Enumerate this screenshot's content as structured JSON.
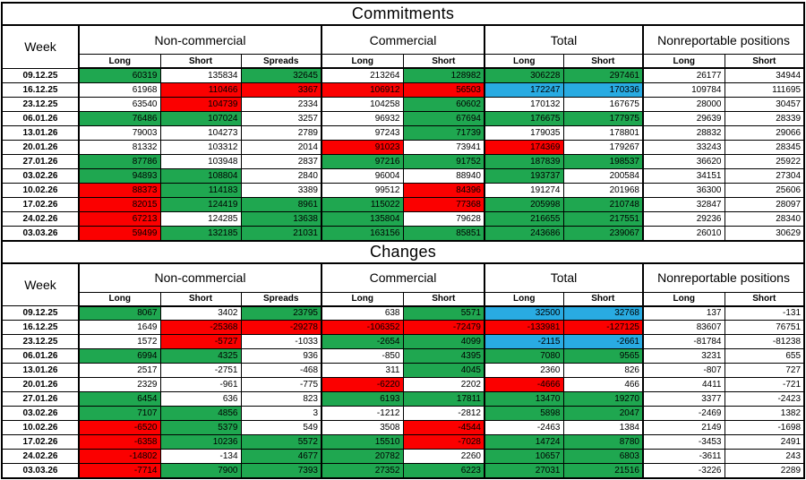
{
  "colors": {
    "green": "#1FA750",
    "red": "#FB0000",
    "blue": "#29ABE2",
    "border": "#000000"
  },
  "header": {
    "week_label": "Week",
    "groups": [
      {
        "label": "Non-commercial",
        "cols": [
          "Long",
          "Short",
          "Spreads"
        ]
      },
      {
        "label": "Commercial",
        "cols": [
          "Long",
          "Short"
        ]
      },
      {
        "label": "Total",
        "cols": [
          "Long",
          "Short"
        ]
      },
      {
        "label": "Nonreportable positions",
        "cols": [
          "Long",
          "Short"
        ]
      }
    ]
  },
  "tables": [
    {
      "title": "Commitments",
      "rows": [
        {
          "week": "09.12.25",
          "cells": [
            [
              "60319",
              "g"
            ],
            [
              "135834",
              "w"
            ],
            [
              "32645",
              "g"
            ],
            [
              "213264",
              "w"
            ],
            [
              "128982",
              "g"
            ],
            [
              "306228",
              "g"
            ],
            [
              "297461",
              "g"
            ],
            [
              "26177",
              "w"
            ],
            [
              "34944",
              "w"
            ]
          ]
        },
        {
          "week": "16.12.25",
          "cells": [
            [
              "61968",
              "w"
            ],
            [
              "110466",
              "r"
            ],
            [
              "3367",
              "r"
            ],
            [
              "106912",
              "r"
            ],
            [
              "56503",
              "r"
            ],
            [
              "172247",
              "b"
            ],
            [
              "170336",
              "b"
            ],
            [
              "109784",
              "w"
            ],
            [
              "111695",
              "w"
            ]
          ]
        },
        {
          "week": "23.12.25",
          "cells": [
            [
              "63540",
              "w"
            ],
            [
              "104739",
              "r"
            ],
            [
              "2334",
              "w"
            ],
            [
              "104258",
              "w"
            ],
            [
              "60602",
              "g"
            ],
            [
              "170132",
              "w"
            ],
            [
              "167675",
              "w"
            ],
            [
              "28000",
              "w"
            ],
            [
              "30457",
              "w"
            ]
          ]
        },
        {
          "week": "06.01.26",
          "cells": [
            [
              "76486",
              "g"
            ],
            [
              "107024",
              "g"
            ],
            [
              "3257",
              "w"
            ],
            [
              "96932",
              "w"
            ],
            [
              "67694",
              "g"
            ],
            [
              "176675",
              "g"
            ],
            [
              "177975",
              "g"
            ],
            [
              "29639",
              "w"
            ],
            [
              "28339",
              "w"
            ]
          ]
        },
        {
          "week": "13.01.26",
          "cells": [
            [
              "79003",
              "w"
            ],
            [
              "104273",
              "w"
            ],
            [
              "2789",
              "w"
            ],
            [
              "97243",
              "w"
            ],
            [
              "71739",
              "g"
            ],
            [
              "179035",
              "w"
            ],
            [
              "178801",
              "w"
            ],
            [
              "28832",
              "w"
            ],
            [
              "29066",
              "w"
            ]
          ]
        },
        {
          "week": "20.01.26",
          "cells": [
            [
              "81332",
              "w"
            ],
            [
              "103312",
              "w"
            ],
            [
              "2014",
              "w"
            ],
            [
              "91023",
              "r"
            ],
            [
              "73941",
              "w"
            ],
            [
              "174369",
              "r"
            ],
            [
              "179267",
              "w"
            ],
            [
              "33243",
              "w"
            ],
            [
              "28345",
              "w"
            ]
          ]
        },
        {
          "week": "27.01.26",
          "cells": [
            [
              "87786",
              "g"
            ],
            [
              "103948",
              "w"
            ],
            [
              "2837",
              "w"
            ],
            [
              "97216",
              "g"
            ],
            [
              "91752",
              "g"
            ],
            [
              "187839",
              "g"
            ],
            [
              "198537",
              "g"
            ],
            [
              "36620",
              "w"
            ],
            [
              "25922",
              "w"
            ]
          ]
        },
        {
          "week": "03.02.26",
          "cells": [
            [
              "94893",
              "g"
            ],
            [
              "108804",
              "g"
            ],
            [
              "2840",
              "w"
            ],
            [
              "96004",
              "w"
            ],
            [
              "88940",
              "w"
            ],
            [
              "193737",
              "g"
            ],
            [
              "200584",
              "w"
            ],
            [
              "34151",
              "w"
            ],
            [
              "27304",
              "w"
            ]
          ]
        },
        {
          "week": "10.02.26",
          "cells": [
            [
              "88373",
              "r"
            ],
            [
              "114183",
              "g"
            ],
            [
              "3389",
              "w"
            ],
            [
              "99512",
              "w"
            ],
            [
              "84396",
              "r"
            ],
            [
              "191274",
              "w"
            ],
            [
              "201968",
              "w"
            ],
            [
              "36300",
              "w"
            ],
            [
              "25606",
              "w"
            ]
          ]
        },
        {
          "week": "17.02.26",
          "cells": [
            [
              "82015",
              "r"
            ],
            [
              "124419",
              "g"
            ],
            [
              "8961",
              "g"
            ],
            [
              "115022",
              "g"
            ],
            [
              "77368",
              "r"
            ],
            [
              "205998",
              "g"
            ],
            [
              "210748",
              "g"
            ],
            [
              "32847",
              "w"
            ],
            [
              "28097",
              "w"
            ]
          ]
        },
        {
          "week": "24.02.26",
          "cells": [
            [
              "67213",
              "r"
            ],
            [
              "124285",
              "w"
            ],
            [
              "13638",
              "g"
            ],
            [
              "135804",
              "g"
            ],
            [
              "79628",
              "w"
            ],
            [
              "216655",
              "g"
            ],
            [
              "217551",
              "g"
            ],
            [
              "29236",
              "w"
            ],
            [
              "28340",
              "w"
            ]
          ]
        },
        {
          "week": "03.03.26",
          "cells": [
            [
              "59499",
              "r"
            ],
            [
              "132185",
              "g"
            ],
            [
              "21031",
              "g"
            ],
            [
              "163156",
              "g"
            ],
            [
              "85851",
              "g"
            ],
            [
              "243686",
              "gB"
            ],
            [
              "239067",
              "gB"
            ],
            [
              "26010",
              "w"
            ],
            [
              "30629",
              "w"
            ]
          ]
        }
      ]
    },
    {
      "title": "Changes",
      "rows": [
        {
          "week": "09.12.25",
          "cells": [
            [
              "8067",
              "g"
            ],
            [
              "3402",
              "w"
            ],
            [
              "23795",
              "g"
            ],
            [
              "638",
              "w"
            ],
            [
              "5571",
              "g"
            ],
            [
              "32500",
              "b"
            ],
            [
              "32768",
              "b"
            ],
            [
              "137",
              "w"
            ],
            [
              "-131",
              "w"
            ]
          ]
        },
        {
          "week": "16.12.25",
          "cells": [
            [
              "1649",
              "w"
            ],
            [
              "-25368",
              "r"
            ],
            [
              "-29278",
              "r"
            ],
            [
              "-106352",
              "r"
            ],
            [
              "-72479",
              "r"
            ],
            [
              "-133981",
              "r"
            ],
            [
              "-127125",
              "r"
            ],
            [
              "83607",
              "w"
            ],
            [
              "76751",
              "w"
            ]
          ]
        },
        {
          "week": "23.12.25",
          "cells": [
            [
              "1572",
              "w"
            ],
            [
              "-5727",
              "r"
            ],
            [
              "-1033",
              "w"
            ],
            [
              "-2654",
              "g"
            ],
            [
              "4099",
              "g"
            ],
            [
              "-2115",
              "b"
            ],
            [
              "-2661",
              "b"
            ],
            [
              "-81784",
              "w"
            ],
            [
              "-81238",
              "w"
            ]
          ]
        },
        {
          "week": "06.01.26",
          "cells": [
            [
              "6994",
              "g"
            ],
            [
              "4325",
              "g"
            ],
            [
              "936",
              "w"
            ],
            [
              "-850",
              "w"
            ],
            [
              "4395",
              "g"
            ],
            [
              "7080",
              "g"
            ],
            [
              "9565",
              "g"
            ],
            [
              "3231",
              "w"
            ],
            [
              "655",
              "w"
            ]
          ]
        },
        {
          "week": "13.01.26",
          "cells": [
            [
              "2517",
              "w"
            ],
            [
              "-2751",
              "w"
            ],
            [
              "-468",
              "w"
            ],
            [
              "311",
              "w"
            ],
            [
              "4045",
              "g"
            ],
            [
              "2360",
              "w"
            ],
            [
              "826",
              "w"
            ],
            [
              "-807",
              "w"
            ],
            [
              "727",
              "w"
            ]
          ]
        },
        {
          "week": "20.01.26",
          "cells": [
            [
              "2329",
              "w"
            ],
            [
              "-961",
              "w"
            ],
            [
              "-775",
              "w"
            ],
            [
              "-6220",
              "r"
            ],
            [
              "2202",
              "w"
            ],
            [
              "-4666",
              "r"
            ],
            [
              "466",
              "w"
            ],
            [
              "4411",
              "w"
            ],
            [
              "-721",
              "w"
            ]
          ]
        },
        {
          "week": "27.01.26",
          "cells": [
            [
              "6454",
              "g"
            ],
            [
              "636",
              "w"
            ],
            [
              "823",
              "w"
            ],
            [
              "6193",
              "g"
            ],
            [
              "17811",
              "g"
            ],
            [
              "13470",
              "g"
            ],
            [
              "19270",
              "g"
            ],
            [
              "3377",
              "w"
            ],
            [
              "-2423",
              "w"
            ]
          ]
        },
        {
          "week": "03.02.26",
          "cells": [
            [
              "7107",
              "g"
            ],
            [
              "4856",
              "g"
            ],
            [
              "3",
              "w"
            ],
            [
              "-1212",
              "w"
            ],
            [
              "-2812",
              "w"
            ],
            [
              "5898",
              "g"
            ],
            [
              "2047",
              "g"
            ],
            [
              "-2469",
              "w"
            ],
            [
              "1382",
              "w"
            ]
          ]
        },
        {
          "week": "10.02.26",
          "cells": [
            [
              "-6520",
              "r"
            ],
            [
              "5379",
              "g"
            ],
            [
              "549",
              "w"
            ],
            [
              "3508",
              "w"
            ],
            [
              "-4544",
              "r"
            ],
            [
              "-2463",
              "w"
            ],
            [
              "1384",
              "w"
            ],
            [
              "2149",
              "w"
            ],
            [
              "-1698",
              "w"
            ]
          ]
        },
        {
          "week": "17.02.26",
          "cells": [
            [
              "-6358",
              "r"
            ],
            [
              "10236",
              "g"
            ],
            [
              "5572",
              "g"
            ],
            [
              "15510",
              "g"
            ],
            [
              "-7028",
              "r"
            ],
            [
              "14724",
              "g"
            ],
            [
              "8780",
              "g"
            ],
            [
              "-3453",
              "w"
            ],
            [
              "2491",
              "w"
            ]
          ]
        },
        {
          "week": "24.02.26",
          "cells": [
            [
              "-14802",
              "r"
            ],
            [
              "-134",
              "w"
            ],
            [
              "4677",
              "g"
            ],
            [
              "20782",
              "g"
            ],
            [
              "2260",
              "w"
            ],
            [
              "10657",
              "g"
            ],
            [
              "6803",
              "g"
            ],
            [
              "-3611",
              "w"
            ],
            [
              "243",
              "w"
            ]
          ]
        },
        {
          "week": "03.03.26",
          "cells": [
            [
              "-7714",
              "r"
            ],
            [
              "7900",
              "g"
            ],
            [
              "7393",
              "g"
            ],
            [
              "27352",
              "g"
            ],
            [
              "6223",
              "g"
            ],
            [
              "27031",
              "gB"
            ],
            [
              "21516",
              "gB"
            ],
            [
              "-3226",
              "w"
            ],
            [
              "2289",
              "w"
            ]
          ]
        }
      ]
    }
  ]
}
